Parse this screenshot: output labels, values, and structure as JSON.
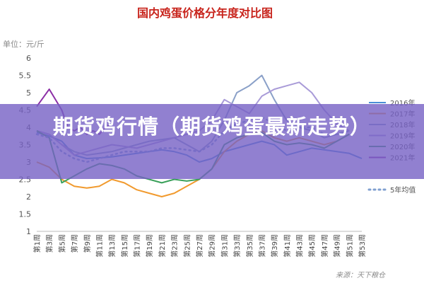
{
  "chart_data": {
    "type": "line",
    "title": "国内鸡蛋价格分年度对比图",
    "unit_label": "单位：元/斤",
    "source": "来源：天下粮仓",
    "ylim": [
      1,
      6
    ],
    "yticks": [
      "1",
      "1.5",
      "2",
      "2.5",
      "3",
      "3.5",
      "4",
      "4.5",
      "5",
      "5.5",
      "6"
    ],
    "x_tick_labels": [
      "第1周",
      "第3周",
      "第5周",
      "第7周",
      "第9周",
      "第11周",
      "第13周",
      "第15周",
      "第17周",
      "第19周",
      "第21周",
      "第23周",
      "第25周",
      "第27周",
      "第29周",
      "第31周",
      "第33周",
      "第35周",
      "第37周",
      "第39周",
      "第41周",
      "第43周",
      "第45周",
      "第47周",
      "第49周",
      "第51周",
      "第53周"
    ],
    "x_weeks": [
      1,
      3,
      5,
      7,
      9,
      11,
      13,
      15,
      17,
      19,
      21,
      23,
      25,
      27,
      29,
      31,
      33,
      35,
      37,
      39,
      41,
      43,
      45,
      47,
      49,
      51,
      53
    ],
    "grid": false,
    "legend_position": "right",
    "series": [
      {
        "name": "2016年",
        "color": "#4a8fd6",
        "dash": false,
        "weeks": [
          1,
          3,
          5,
          7,
          9,
          11,
          13,
          15,
          17,
          19,
          21,
          23,
          25,
          27,
          29,
          31,
          33,
          35,
          37,
          39,
          41,
          43,
          45,
          47,
          49,
          51,
          53
        ],
        "values": [
          3.85,
          3.75,
          3.6,
          3.2,
          3.1,
          3.12,
          3.15,
          3.2,
          3.25,
          3.3,
          3.35,
          3.3,
          3.2,
          3.0,
          3.1,
          3.3,
          3.4,
          3.5,
          3.6,
          3.5,
          3.2,
          3.3,
          3.4,
          3.35,
          3.3,
          3.25,
          3.1
        ]
      },
      {
        "name": "2017年",
        "color": "#f19a2e",
        "dash": false,
        "weeks": [
          1,
          3,
          5,
          7,
          9,
          11,
          13,
          15,
          17,
          19,
          21,
          23,
          25,
          27,
          29,
          31,
          33,
          35,
          37,
          39,
          41,
          43,
          45,
          47,
          49,
          51
        ],
        "values": [
          3.0,
          2.85,
          2.5,
          2.3,
          2.25,
          2.3,
          2.5,
          2.4,
          2.2,
          2.1,
          2.0,
          2.1,
          2.3,
          2.5,
          2.8,
          3.3,
          3.6,
          3.8,
          3.9,
          3.7,
          3.6,
          3.7,
          3.6,
          3.5,
          3.6,
          3.8
        ]
      },
      {
        "name": "2018年",
        "color": "#8aa0c8",
        "dash": false,
        "weeks": [
          1,
          3,
          5,
          7,
          9,
          11,
          13,
          15,
          17,
          19,
          21,
          23,
          25,
          27,
          29,
          31,
          33,
          35,
          37,
          39,
          41,
          43,
          45,
          47,
          49,
          51
        ],
        "values": [
          3.9,
          3.8,
          3.5,
          3.3,
          3.2,
          3.25,
          3.3,
          3.4,
          3.5,
          3.6,
          3.65,
          3.7,
          3.5,
          3.3,
          3.6,
          4.2,
          5.0,
          5.2,
          5.5,
          4.8,
          4.2,
          4.0,
          3.9,
          3.7,
          3.8,
          3.9
        ]
      },
      {
        "name": "2019年",
        "color": "#a99bd8",
        "dash": false,
        "weeks": [
          1,
          3,
          5,
          7,
          9,
          11,
          13,
          15,
          17,
          19,
          21,
          23,
          25,
          27,
          29,
          31,
          33,
          35,
          37,
          39,
          41,
          43,
          45,
          47,
          49,
          51
        ],
        "values": [
          3.9,
          3.8,
          3.5,
          3.2,
          3.3,
          3.4,
          3.5,
          3.45,
          3.4,
          3.5,
          3.6,
          3.7,
          3.8,
          3.9,
          4.2,
          4.8,
          4.6,
          4.4,
          4.9,
          5.1,
          5.2,
          5.3,
          5.0,
          4.5,
          4.1,
          3.9
        ]
      },
      {
        "name": "2020年",
        "color": "#3aa05a",
        "dash": false,
        "weeks": [
          1,
          3,
          5,
          7,
          9,
          11,
          13,
          15,
          17,
          19,
          21,
          23,
          25,
          27,
          29,
          31,
          33,
          35,
          37,
          39,
          41,
          43,
          45,
          47,
          49,
          51
        ],
        "values": [
          3.9,
          3.7,
          2.4,
          2.6,
          2.8,
          2.95,
          2.9,
          2.8,
          2.6,
          2.5,
          2.4,
          2.5,
          2.45,
          2.5,
          2.8,
          3.5,
          3.7,
          3.8,
          3.85,
          3.6,
          3.5,
          3.55,
          3.5,
          3.4,
          3.6,
          3.8
        ]
      },
      {
        "name": "2021年",
        "color": "#8c2fa6",
        "dash": false,
        "weeks": [
          1,
          3,
          5,
          6,
          7,
          8,
          9,
          10,
          11,
          12,
          13
        ],
        "values": [
          4.6,
          5.1,
          4.5,
          4.0,
          3.9,
          4.0,
          3.8,
          3.9,
          3.8,
          4.0,
          4.1
        ]
      },
      {
        "name": "5年均值",
        "color": "#7f9fd0",
        "dash": true,
        "weeks": [
          1,
          3,
          5,
          7,
          9,
          11,
          13,
          15,
          17,
          19,
          21,
          23,
          25,
          27,
          29,
          31,
          33,
          35,
          37,
          39,
          41,
          43,
          45,
          47,
          49,
          51
        ],
        "values": [
          3.8,
          3.7,
          3.3,
          3.1,
          3.0,
          3.1,
          3.2,
          3.3,
          3.3,
          3.3,
          3.4,
          3.4,
          3.35,
          3.3,
          3.5,
          3.9,
          4.1,
          4.2,
          4.3,
          4.1,
          3.9,
          4.0,
          4.0,
          3.8,
          3.8,
          3.9
        ]
      }
    ]
  },
  "overlay": {
    "headline": "期货鸡行情（期货鸡蛋最新走势）"
  }
}
